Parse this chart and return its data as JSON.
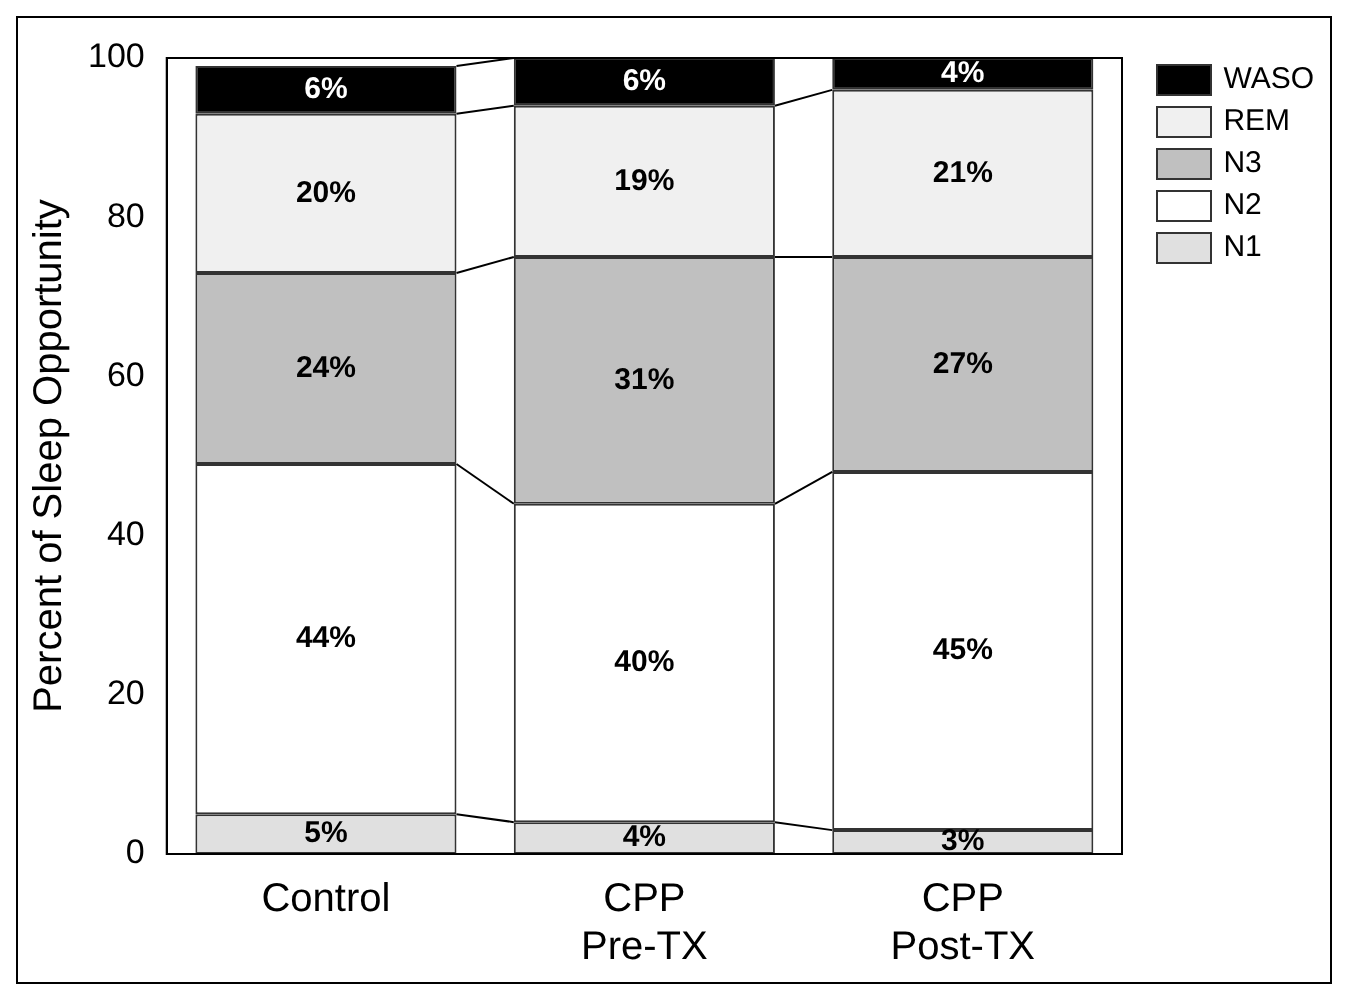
{
  "chart_data": {
    "type": "bar",
    "stacked": true,
    "ylabel": "Percent of Sleep Opportunity",
    "categories": [
      "Control",
      "CPP Pre-TX",
      "CPP Post-TX"
    ],
    "series": [
      {
        "name": "N1",
        "color": "#e0e0e0",
        "values": [
          5,
          4,
          3
        ],
        "value_labels": [
          "5%",
          "4%",
          "3%"
        ]
      },
      {
        "name": "N2",
        "color": "#ffffff",
        "values": [
          44,
          40,
          45
        ],
        "value_labels": [
          "44%",
          "40%",
          "45%"
        ]
      },
      {
        "name": "N3",
        "color": "#c0c0c0",
        "values": [
          24,
          31,
          27
        ],
        "value_labels": [
          "24%",
          "31%",
          "27%"
        ]
      },
      {
        "name": "REM",
        "color": "#f0f0f0",
        "values": [
          20,
          19,
          21
        ],
        "value_labels": [
          "20%",
          "19%",
          "21%"
        ]
      },
      {
        "name": "WASO",
        "color": "#000000",
        "values": [
          6,
          6,
          4
        ],
        "value_labels": [
          "6%",
          "6%",
          "4%"
        ]
      }
    ],
    "ylim": [
      0,
      100
    ],
    "yticks": [
      0,
      20,
      40,
      60,
      80,
      100
    ],
    "grid": false,
    "legend": "top right"
  }
}
